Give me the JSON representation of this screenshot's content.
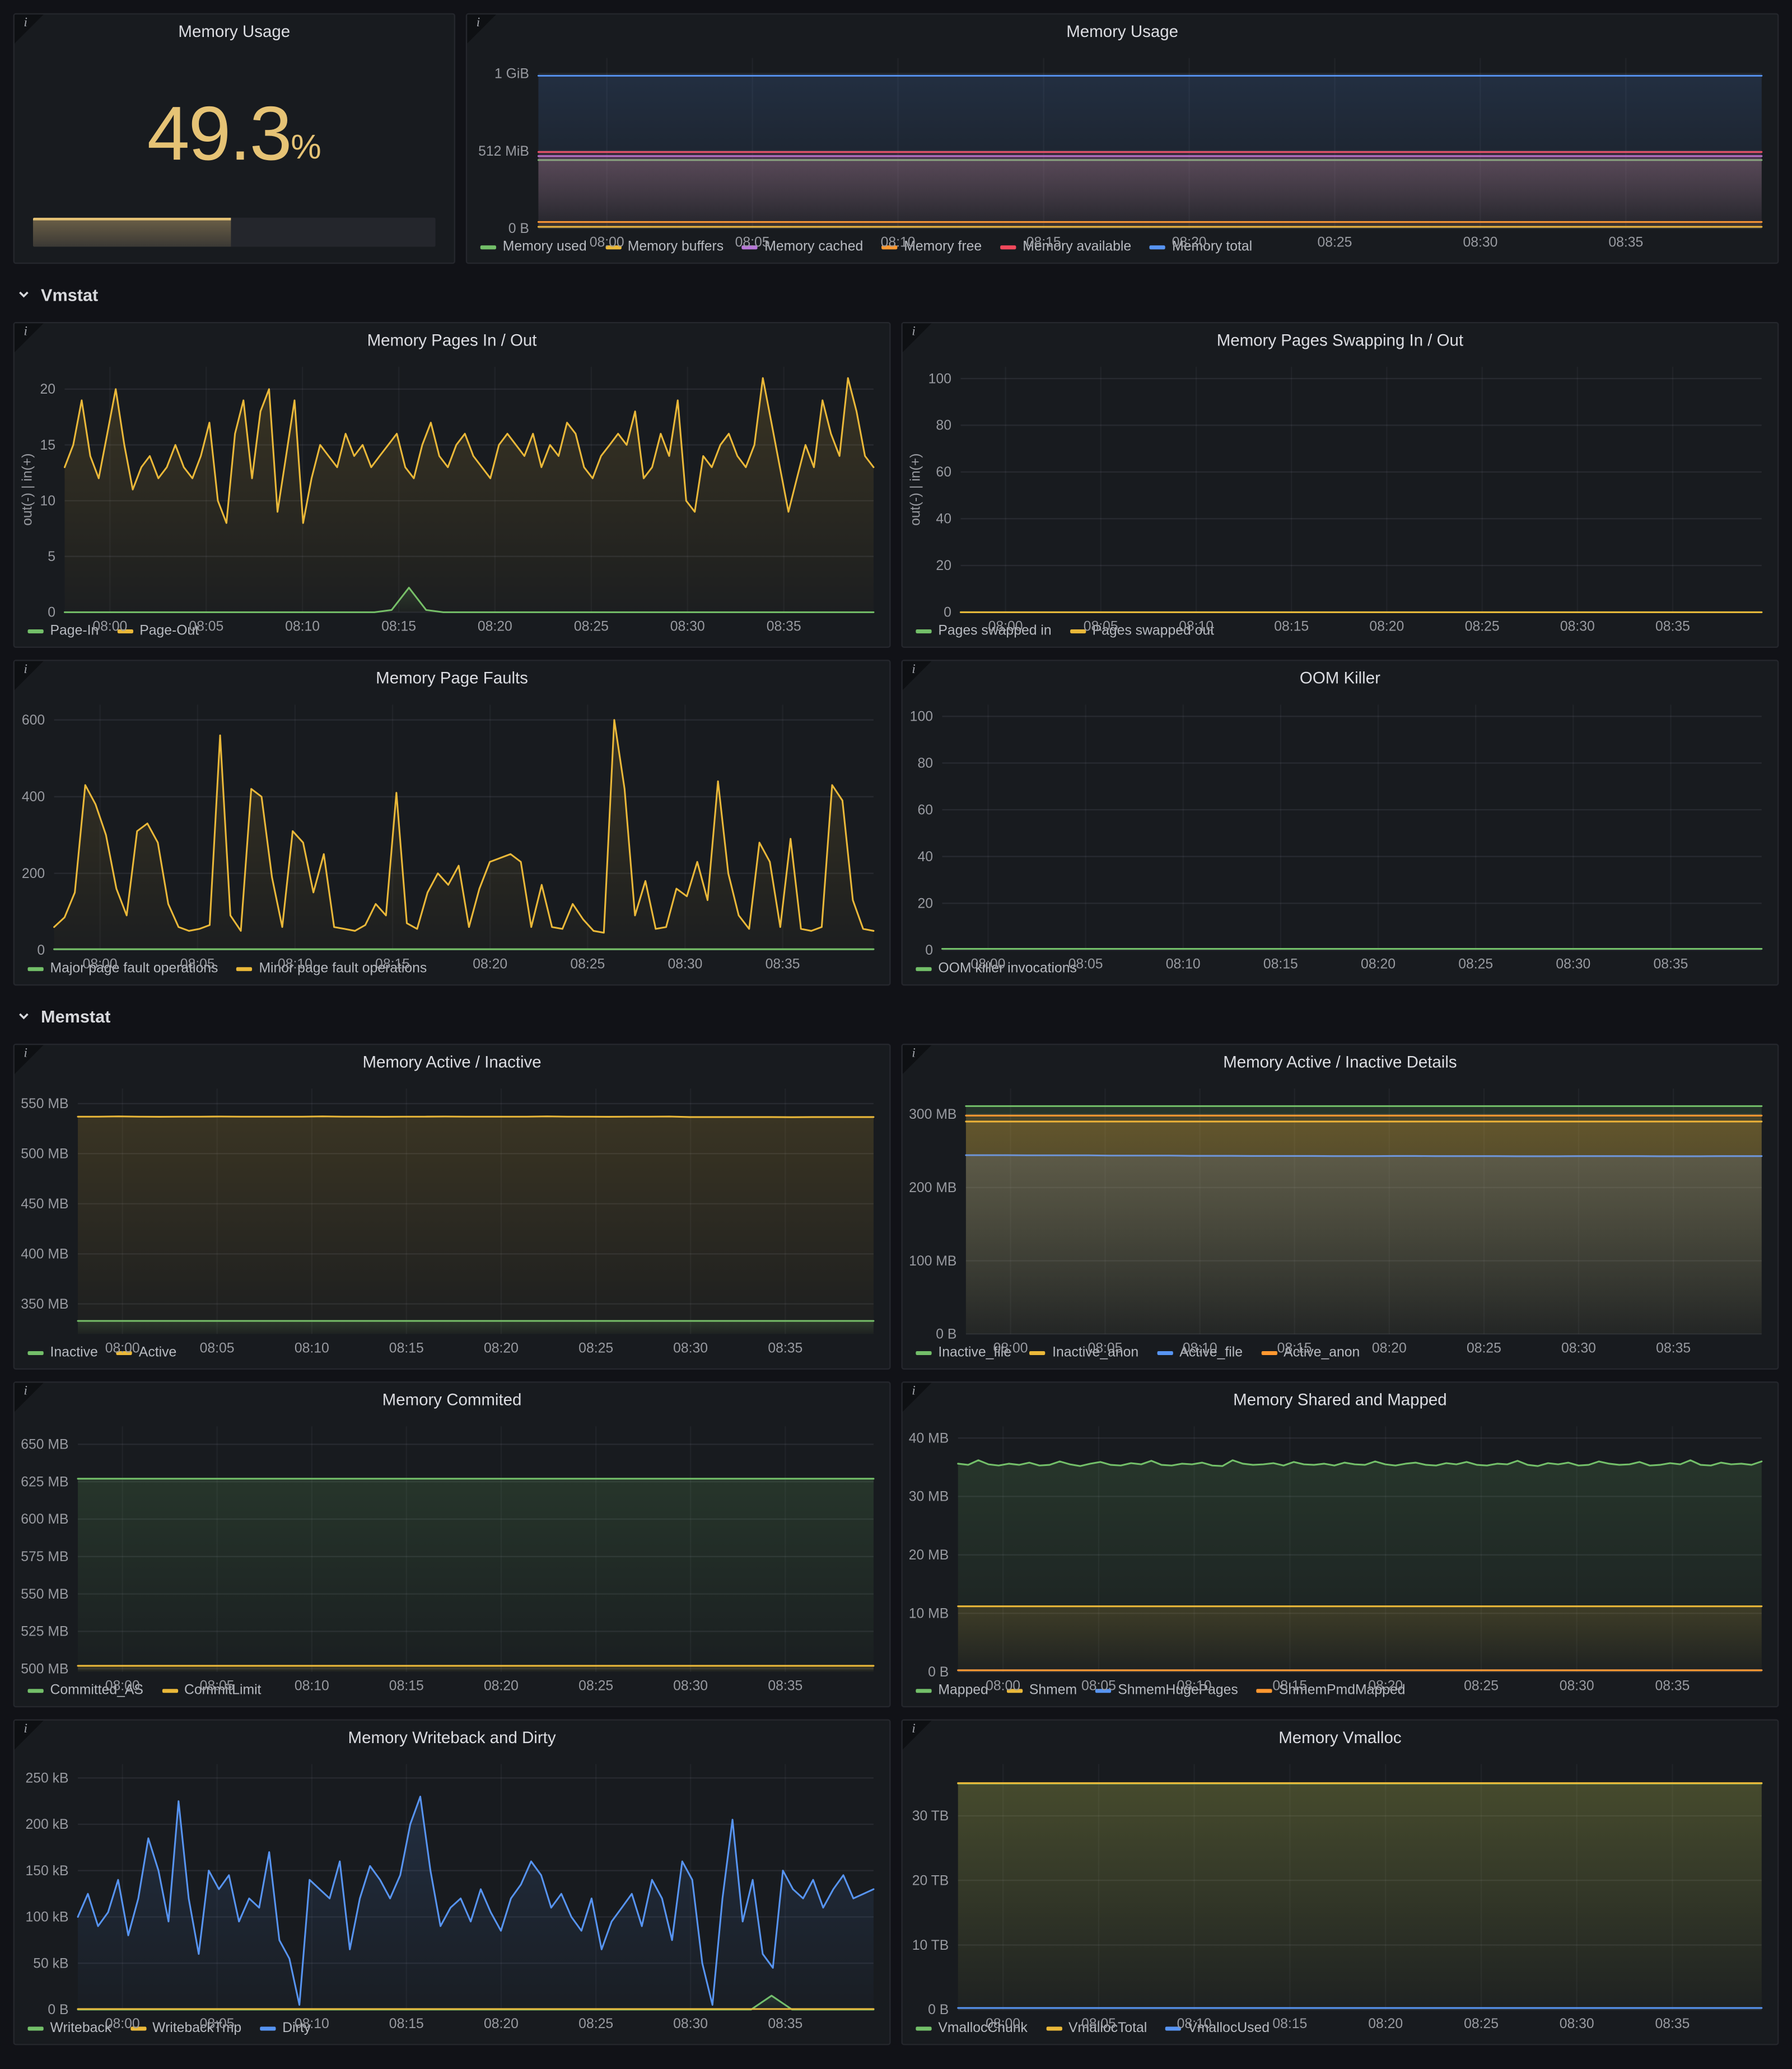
{
  "sections": {
    "vmstat": "Vmstat",
    "memstat": "Memstat"
  },
  "gauge": {
    "title": "Memory Usage",
    "value": "49.3",
    "unit": "%",
    "percent": 49.3,
    "color": "#E6C375"
  },
  "xticks": [
    {
      "f": 0.056,
      "label": "08:00"
    },
    {
      "f": 0.175,
      "label": "08:05"
    },
    {
      "f": 0.294,
      "label": "08:10"
    },
    {
      "f": 0.413,
      "label": "08:15"
    },
    {
      "f": 0.532,
      "label": "08:20"
    },
    {
      "f": 0.651,
      "label": "08:25"
    },
    {
      "f": 0.77,
      "label": "08:30"
    },
    {
      "f": 0.889,
      "label": "08:35"
    }
  ],
  "chart_data": {
    "memory_usage": {
      "type": "line",
      "title": "Memory Usage",
      "ylim": [
        0,
        1127
      ],
      "yticks": [
        {
          "v": 0,
          "label": "0 B"
        },
        {
          "v": 512,
          "label": "512 MiB"
        },
        {
          "v": 1024,
          "label": "1 GiB"
        }
      ],
      "series": [
        {
          "name": "Memory used",
          "color": "#73BF69",
          "value": 452
        },
        {
          "name": "Memory buffers",
          "color": "#EAB839",
          "value": 10
        },
        {
          "name": "Memory cached",
          "color": "#B877D9",
          "value": 478
        },
        {
          "name": "Memory free",
          "color": "#FF9830",
          "value": 42
        },
        {
          "name": "Memory available",
          "color": "#F2495C",
          "value": 505
        },
        {
          "name": "Memory total",
          "color": "#5794F2",
          "value": 1010
        }
      ]
    },
    "pages_in_out": {
      "type": "line",
      "title": "Memory Pages In / Out",
      "ylabel": "out(-) | in(+)",
      "ylim": [
        0,
        22
      ],
      "yticks": [
        {
          "v": 0,
          "label": "0"
        },
        {
          "v": 5,
          "label": "5"
        },
        {
          "v": 10,
          "label": "10"
        },
        {
          "v": 15,
          "label": "15"
        },
        {
          "v": 20,
          "label": "20"
        }
      ],
      "series": [
        {
          "name": "Page-In",
          "color": "#73BF69",
          "values": [
            0,
            0,
            0,
            0,
            0,
            0,
            0,
            0,
            0,
            0,
            0,
            0,
            0,
            0,
            0,
            0,
            0,
            0,
            0,
            0.2,
            2.2,
            0.2,
            0,
            0,
            0,
            0,
            0,
            0,
            0,
            0,
            0,
            0,
            0,
            0,
            0,
            0,
            0,
            0,
            0,
            0,
            0,
            0,
            0,
            0,
            0,
            0,
            0,
            0
          ]
        },
        {
          "name": "Page-Out",
          "color": "#EAB839",
          "values": [
            13,
            15,
            19,
            14,
            12,
            16,
            20,
            15,
            11,
            13,
            14,
            12,
            13,
            15,
            13,
            12,
            14,
            17,
            10,
            8,
            16,
            19,
            12,
            18,
            20,
            9,
            14,
            19,
            8,
            12,
            15,
            14,
            13,
            16,
            14,
            15,
            13,
            14,
            15,
            16,
            13,
            12,
            15,
            17,
            14,
            13,
            15,
            16,
            14,
            13,
            12,
            15,
            16,
            15,
            14,
            16,
            13,
            15,
            14,
            17,
            16,
            13,
            12,
            14,
            15,
            16,
            15,
            18,
            12,
            13,
            16,
            14,
            19,
            10,
            9,
            14,
            13,
            15,
            16,
            14,
            13,
            15,
            21,
            17,
            13,
            9,
            12,
            15,
            13,
            19,
            16,
            14,
            21,
            18,
            14,
            13
          ]
        }
      ]
    },
    "swap_in_out": {
      "type": "line",
      "title": "Memory Pages Swapping In / Out",
      "ylabel": "out(-) | in(+)",
      "ylim": [
        0,
        105
      ],
      "yticks": [
        {
          "v": 0,
          "label": "0"
        },
        {
          "v": 20,
          "label": "20"
        },
        {
          "v": 40,
          "label": "40"
        },
        {
          "v": 60,
          "label": "60"
        },
        {
          "v": 80,
          "label": "80"
        },
        {
          "v": 100,
          "label": "100"
        }
      ],
      "series": [
        {
          "name": "Pages swapped in",
          "color": "#73BF69",
          "value": 0
        },
        {
          "name": "Pages swapped out",
          "color": "#EAB839",
          "value": 0
        }
      ]
    },
    "page_faults": {
      "type": "line",
      "title": "Memory Page Faults",
      "ylim": [
        0,
        640
      ],
      "yticks": [
        {
          "v": 0,
          "label": "0"
        },
        {
          "v": 200,
          "label": "200"
        },
        {
          "v": 400,
          "label": "400"
        },
        {
          "v": 600,
          "label": "600"
        }
      ],
      "series": [
        {
          "name": "Major page fault operations",
          "color": "#73BF69",
          "value": 2
        },
        {
          "name": "Minor page fault operations",
          "color": "#EAB839",
          "values": [
            60,
            85,
            150,
            430,
            380,
            300,
            160,
            90,
            310,
            330,
            280,
            120,
            60,
            50,
            55,
            65,
            560,
            90,
            50,
            420,
            400,
            190,
            60,
            310,
            280,
            150,
            250,
            60,
            55,
            50,
            65,
            120,
            90,
            410,
            70,
            55,
            150,
            200,
            170,
            220,
            60,
            160,
            230,
            240,
            250,
            230,
            60,
            170,
            60,
            55,
            120,
            80,
            50,
            45,
            600,
            420,
            90,
            180,
            55,
            60,
            160,
            140,
            230,
            130,
            440,
            200,
            90,
            55,
            280,
            230,
            60,
            290,
            55,
            50,
            60,
            430,
            390,
            130,
            55,
            50
          ]
        }
      ]
    },
    "oom": {
      "type": "line",
      "title": "OOM Killer",
      "ylim": [
        0,
        105
      ],
      "yticks": [
        {
          "v": 0,
          "label": "0"
        },
        {
          "v": 20,
          "label": "20"
        },
        {
          "v": 40,
          "label": "40"
        },
        {
          "v": 60,
          "label": "60"
        },
        {
          "v": 80,
          "label": "80"
        },
        {
          "v": 100,
          "label": "100"
        }
      ],
      "series": [
        {
          "name": "OOM killer invocations",
          "color": "#73BF69",
          "value": 0.5
        }
      ]
    },
    "active_inactive": {
      "type": "line",
      "title": "Memory Active / Inactive",
      "ylim": [
        320,
        565
      ],
      "yticks": [
        {
          "v": 350,
          "label": "350 MB"
        },
        {
          "v": 400,
          "label": "400 MB"
        },
        {
          "v": 450,
          "label": "450 MB"
        },
        {
          "v": 500,
          "label": "500 MB"
        },
        {
          "v": 550,
          "label": "550 MB"
        }
      ],
      "series": [
        {
          "name": "Inactive",
          "color": "#73BF69",
          "value": 333
        },
        {
          "name": "Active",
          "color": "#EAB839",
          "values": [
            537,
            537,
            537.2,
            537,
            536.8,
            537,
            537,
            537.1,
            537,
            536.9,
            537,
            537,
            537.2,
            537,
            537,
            536.8,
            537,
            537,
            537.1,
            537,
            537,
            536.9,
            537,
            537.2,
            537,
            537,
            536.8,
            537,
            537,
            537.1,
            536.5,
            536.5,
            536.6,
            536.5,
            536.5,
            536.4,
            536.5,
            536.5,
            536.6,
            536.5
          ]
        }
      ]
    },
    "active_inactive_details": {
      "type": "line",
      "title": "Memory Active / Inactive Details",
      "ylim": [
        0,
        335
      ],
      "yticks": [
        {
          "v": 0,
          "label": "0 B"
        },
        {
          "v": 100,
          "label": "100 MB"
        },
        {
          "v": 200,
          "label": "200 MB"
        },
        {
          "v": 300,
          "label": "300 MB"
        }
      ],
      "series": [
        {
          "name": "Inactive_file",
          "color": "#73BF69",
          "value": 311
        },
        {
          "name": "Inactive_anon",
          "color": "#EAB839",
          "value": 290
        },
        {
          "name": "Active_file",
          "color": "#5794F2",
          "values": [
            244,
            244,
            244,
            243.8,
            243.8,
            243.8,
            243.8,
            243.5,
            243.5,
            243.5,
            243.5,
            243.2,
            243.2,
            243.2,
            243,
            243,
            243,
            243,
            242.8,
            242.8,
            242.8,
            243,
            243,
            242.8,
            242.8,
            242.8,
            242.8,
            242.6,
            242.6,
            242.6,
            242.8,
            242.8,
            242.8,
            242.8,
            242.6,
            242.6,
            242.6,
            242.8,
            242.8,
            242.8
          ]
        },
        {
          "name": "Active_anon",
          "color": "#FF9830",
          "value": 298
        }
      ]
    },
    "commited": {
      "type": "line",
      "title": "Memory Commited",
      "ylim": [
        498,
        662
      ],
      "yticks": [
        {
          "v": 500,
          "label": "500 MB"
        },
        {
          "v": 525,
          "label": "525 MB"
        },
        {
          "v": 550,
          "label": "550 MB"
        },
        {
          "v": 575,
          "label": "575 MB"
        },
        {
          "v": 600,
          "label": "600 MB"
        },
        {
          "v": 625,
          "label": "625 MB"
        },
        {
          "v": 650,
          "label": "650 MB"
        }
      ],
      "series": [
        {
          "name": "Committed_AS",
          "color": "#73BF69",
          "value": 627
        },
        {
          "name": "CommitLimit",
          "color": "#EAB839",
          "value": 502
        }
      ]
    },
    "shared_mapped": {
      "type": "line",
      "title": "Memory Shared and Mapped",
      "ylim": [
        0,
        42
      ],
      "yticks": [
        {
          "v": 0,
          "label": "0 B"
        },
        {
          "v": 10,
          "label": "10 MB"
        },
        {
          "v": 20,
          "label": "20 MB"
        },
        {
          "v": 30,
          "label": "30 MB"
        },
        {
          "v": 40,
          "label": "40 MB"
        }
      ],
      "series": [
        {
          "name": "Mapped",
          "color": "#73BF69",
          "values": [
            35.6,
            35.4,
            36.2,
            35.5,
            35.3,
            35.6,
            35.4,
            35.8,
            35.3,
            35.4,
            36,
            35.5,
            35.2,
            35.6,
            35.9,
            35.4,
            35.3,
            35.7,
            35.5,
            36.1,
            35.4,
            35.3,
            35.6,
            35.5,
            35.8,
            35.3,
            35.2,
            36.2,
            35.6,
            35.4,
            35.5,
            35.7,
            35.3,
            35.9,
            35.5,
            35.4,
            35.6,
            35.3,
            35.8,
            35.5,
            35.4,
            36,
            35.5,
            35.3,
            35.6,
            35.8,
            35.4,
            35.3,
            35.7,
            35.5,
            35.9,
            35.4,
            35.3,
            35.6,
            35.5,
            36.1,
            35.4,
            35.2,
            35.7,
            35.5,
            35.8,
            35.3,
            35.4,
            36,
            35.6,
            35.4,
            35.5,
            35.9,
            35.3,
            35.4,
            35.7,
            35.5,
            36.2,
            35.4,
            35.3,
            35.8,
            35.5,
            35.6,
            35.4,
            36
          ]
        },
        {
          "name": "Shmem",
          "color": "#EAB839",
          "value": 11.2
        },
        {
          "name": "ShmemHugePages",
          "color": "#5794F2",
          "value": 0.25
        },
        {
          "name": "ShmemPmdMapped",
          "color": "#FF9830",
          "value": 0.25
        }
      ]
    },
    "writeback_dirty": {
      "type": "line",
      "title": "Memory Writeback and Dirty",
      "ylim": [
        0,
        265
      ],
      "yticks": [
        {
          "v": 0,
          "label": "0 B"
        },
        {
          "v": 50,
          "label": "50 kB"
        },
        {
          "v": 100,
          "label": "100 kB"
        },
        {
          "v": 150,
          "label": "150 kB"
        },
        {
          "v": 200,
          "label": "200 kB"
        },
        {
          "v": 250,
          "label": "250 kB"
        }
      ],
      "series": [
        {
          "name": "Writeback",
          "color": "#73BF69",
          "values": [
            0,
            0,
            0,
            0,
            0,
            0,
            0,
            0,
            0,
            0,
            0,
            0,
            0,
            0,
            0,
            0,
            0,
            0,
            0,
            0,
            0,
            0,
            0,
            0,
            0,
            0,
            0,
            0,
            0,
            0,
            0,
            0,
            0,
            0,
            15,
            0,
            0,
            0,
            0,
            0
          ]
        },
        {
          "name": "WritebackTmp",
          "color": "#EAB839",
          "value": 0.5
        },
        {
          "name": "Dirty",
          "color": "#5794F2",
          "values": [
            100,
            125,
            90,
            105,
            140,
            80,
            120,
            185,
            150,
            95,
            225,
            120,
            60,
            150,
            130,
            145,
            95,
            120,
            110,
            170,
            75,
            55,
            5,
            140,
            130,
            120,
            160,
            65,
            120,
            155,
            140,
            120,
            145,
            200,
            230,
            150,
            90,
            110,
            120,
            95,
            130,
            105,
            85,
            120,
            135,
            160,
            145,
            110,
            125,
            100,
            85,
            120,
            65,
            95,
            110,
            125,
            90,
            140,
            120,
            75,
            160,
            140,
            50,
            5,
            120,
            205,
            95,
            140,
            60,
            45,
            150,
            130,
            120,
            140,
            110,
            130,
            145,
            120,
            125,
            130
          ]
        }
      ]
    },
    "vmalloc": {
      "type": "line",
      "title": "Memory Vmalloc",
      "ylim": [
        0,
        38
      ],
      "yticks": [
        {
          "v": 0,
          "label": "0 B"
        },
        {
          "v": 10,
          "label": "10 TB"
        },
        {
          "v": 20,
          "label": "20 TB"
        },
        {
          "v": 30,
          "label": "30 TB"
        }
      ],
      "series": [
        {
          "name": "VmallocChunk",
          "color": "#73BF69",
          "value": 35.0
        },
        {
          "name": "VmallocTotal",
          "color": "#EAB839",
          "value": 35.05
        },
        {
          "name": "VmallocUsed",
          "color": "#5794F2",
          "value": 0.25
        }
      ]
    }
  }
}
